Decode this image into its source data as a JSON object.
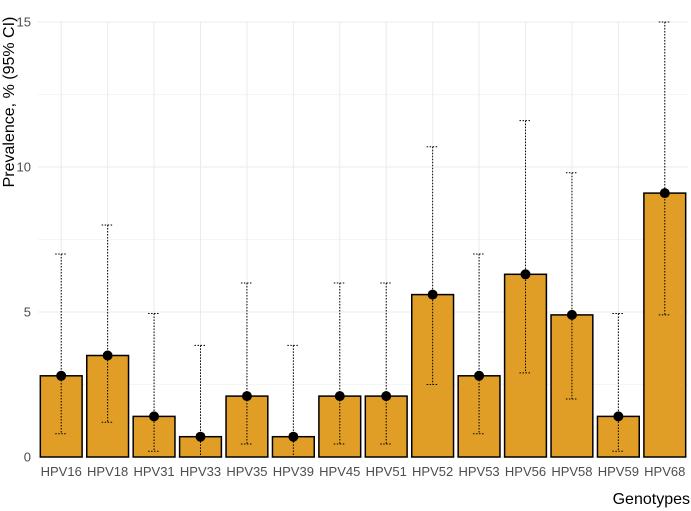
{
  "chart_data": {
    "type": "bar",
    "xlabel": "Genotypes",
    "ylabel": "Prevalence, % (95% CI)",
    "ylim": [
      0,
      15
    ],
    "yticks": [
      0,
      5,
      10,
      15
    ],
    "grid": true,
    "categories": [
      "HPV16",
      "HPV18",
      "HPV31",
      "HPV33",
      "HPV35",
      "HPV39",
      "HPV45",
      "HPV51",
      "HPV52",
      "HPV53",
      "HPV56",
      "HPV58",
      "HPV59",
      "HPV68"
    ],
    "values": [
      2.8,
      3.5,
      1.4,
      0.7,
      2.1,
      0.7,
      2.1,
      2.1,
      5.6,
      2.8,
      6.3,
      4.9,
      1.4,
      9.1
    ],
    "ci_lower": [
      0.8,
      1.2,
      0.2,
      0.0,
      0.45,
      0.0,
      0.45,
      0.45,
      2.5,
      0.8,
      2.9,
      2.0,
      0.2,
      4.9
    ],
    "ci_upper": [
      7.0,
      8.0,
      4.95,
      3.85,
      6.0,
      3.85,
      6.0,
      6.0,
      10.7,
      7.0,
      11.6,
      9.8,
      4.95,
      15.0
    ]
  },
  "colors": {
    "bar_fill": "#E19E26",
    "bar_stroke": "#000000",
    "point": "#000000",
    "grid": "#EBEBEB",
    "tick_text": "#4D4D4D"
  }
}
